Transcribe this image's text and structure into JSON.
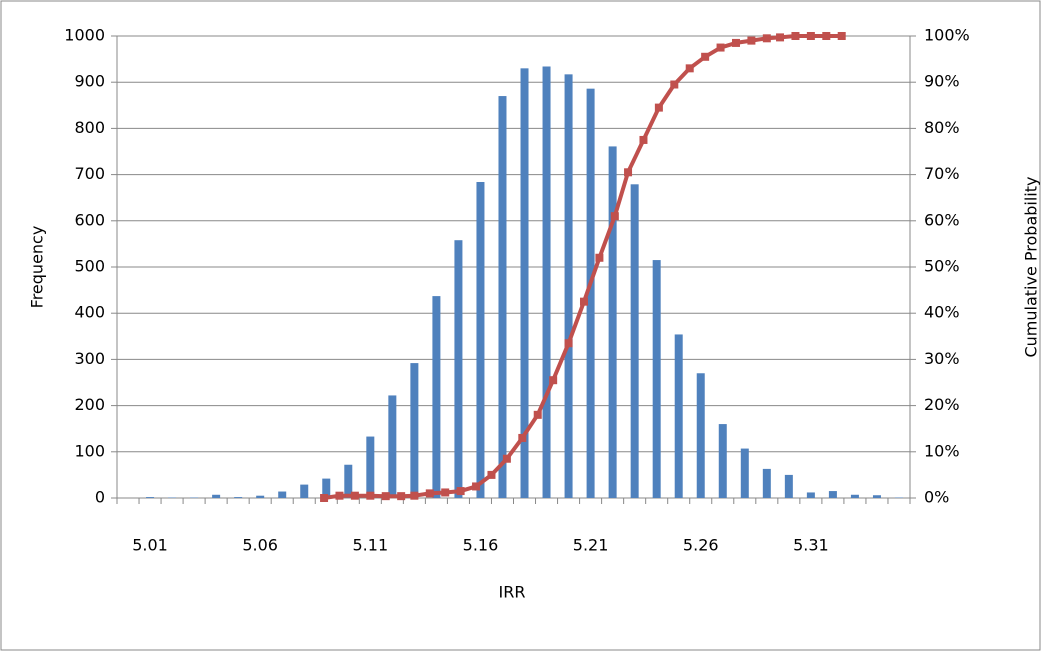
{
  "chart_data": {
    "type": "bar-line",
    "x_label": "IRR",
    "y_label": "Frequency",
    "y2_label": "Cumulative Probability",
    "categories": [
      null,
      "5.01",
      null,
      null,
      null,
      null,
      "5.06",
      null,
      null,
      null,
      null,
      "5.11",
      null,
      null,
      null,
      null,
      "5.16",
      null,
      null,
      null,
      null,
      "5.21",
      null,
      null,
      null,
      null,
      "5.26",
      null,
      null,
      null,
      null,
      "5.31",
      null,
      null,
      null,
      null
    ],
    "xlim": [
      4.995,
      5.355
    ],
    "series": [
      {
        "type": "bar",
        "color": "#4f81bd",
        "values": [
          0,
          2,
          1,
          1,
          7,
          2,
          5,
          14,
          29,
          42,
          72,
          133,
          222,
          292,
          437,
          558,
          684,
          870,
          930,
          934,
          917,
          886,
          761,
          679,
          515,
          354,
          270,
          160,
          107,
          63,
          50,
          12,
          15,
          7,
          6,
          1
        ]
      },
      {
        "type": "line",
        "color": "#c0504d",
        "axis": "y2",
        "x": [
          5.089,
          5.096,
          5.103,
          5.11,
          5.117,
          5.124,
          5.13,
          5.137,
          5.144,
          5.151,
          5.158,
          5.165,
          5.172,
          5.179,
          5.186,
          5.193,
          5.2,
          5.207,
          5.214,
          5.221,
          5.227,
          5.234,
          5.241,
          5.248,
          5.255,
          5.262,
          5.269,
          5.276,
          5.283,
          5.29,
          5.296,
          5.303,
          5.31,
          5.317,
          5.324
        ],
        "values": [
          0,
          0.5,
          0.5,
          0.5,
          0.4,
          0.4,
          0.5,
          1,
          1.2,
          1.5,
          2.5,
          5,
          8.5,
          13,
          18,
          25.5,
          33.5,
          42.5,
          52,
          61,
          70.5,
          77.5,
          84.5,
          89.5,
          93,
          95.5,
          97.5,
          98.5,
          99,
          99.5,
          99.7,
          100,
          100,
          100,
          100
        ]
      }
    ],
    "ylim": [
      0,
      1000
    ],
    "yticks": [
      0,
      100,
      200,
      300,
      400,
      500,
      600,
      700,
      800,
      900,
      1000
    ],
    "y2lim": [
      0,
      100
    ],
    "y2ticks": [
      {
        "value": 0,
        "label": "0%"
      },
      {
        "value": 10,
        "label": "10%"
      },
      {
        "value": 20,
        "label": "20%"
      },
      {
        "value": 30,
        "label": "30%"
      },
      {
        "value": 40,
        "label": "40%"
      },
      {
        "value": 50,
        "label": "50%"
      },
      {
        "value": 60,
        "label": "60%"
      },
      {
        "value": 70,
        "label": "70%"
      },
      {
        "value": 80,
        "label": "80%"
      },
      {
        "value": 90,
        "label": "90%"
      },
      {
        "value": 100,
        "label": "100%"
      }
    ],
    "grid": true
  }
}
